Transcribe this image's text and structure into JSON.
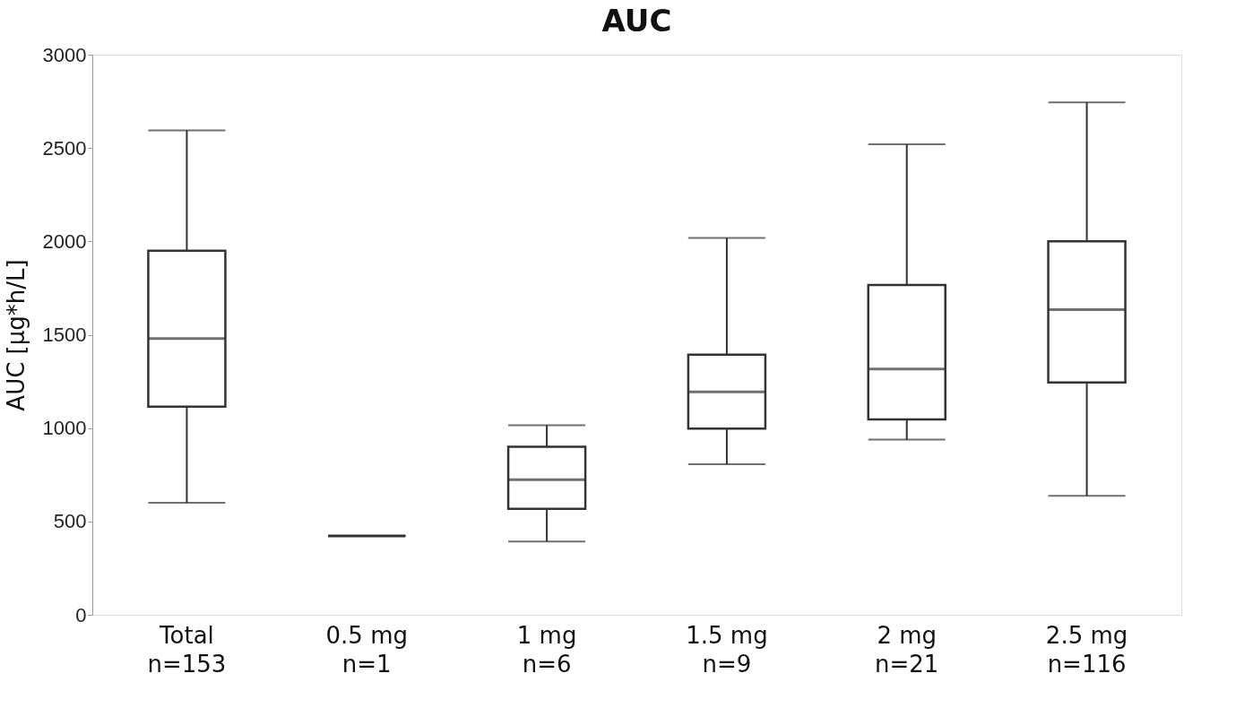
{
  "chart_data": {
    "type": "box",
    "title": "AUC",
    "ylabel": "AUC [µg*h/L]",
    "categories": [
      "Total\nn=153",
      "0.5 mg\nn=1",
      "1 mg\nn=6",
      "1.5 mg\nn=9",
      "2 mg\nn=21",
      "2.5 mg\nn=116"
    ],
    "boxes": [
      {
        "low": 600,
        "q1": 1115,
        "median": 1480,
        "q3": 1950,
        "high": 2595
      },
      {
        "low": 423,
        "q1": 423,
        "median": 423,
        "q3": 423,
        "high": 423
      },
      {
        "low": 392,
        "q1": 568,
        "median": 724,
        "q3": 900,
        "high": 1015
      },
      {
        "low": 806,
        "q1": 997,
        "median": 1194,
        "q3": 1393,
        "high": 2018
      },
      {
        "low": 938,
        "q1": 1047,
        "median": 1316,
        "q3": 1767,
        "high": 2520
      },
      {
        "low": 637,
        "q1": 1245,
        "median": 1635,
        "q3": 2000,
        "high": 2745
      }
    ],
    "color": "#333333",
    "ylim": [
      0,
      3000
    ],
    "yticks": [
      0,
      500,
      1000,
      1500,
      2000,
      2500,
      3000
    ],
    "grid": false
  }
}
